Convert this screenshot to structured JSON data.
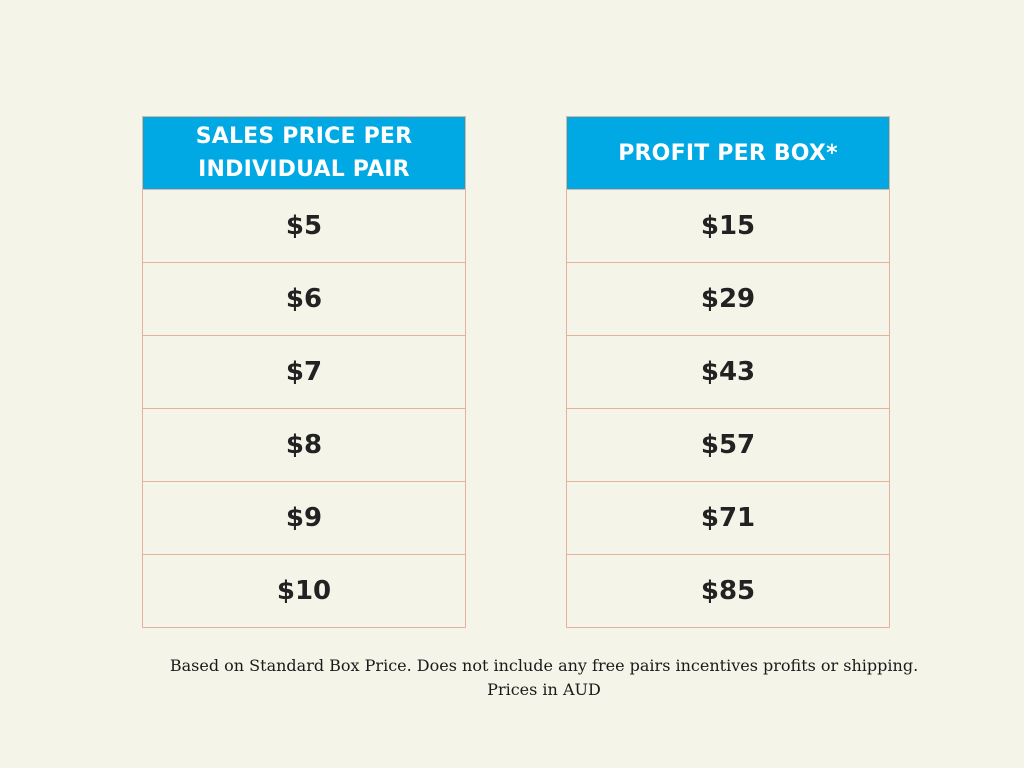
{
  "tables": [
    {
      "header": [
        "SALES PRICE PER",
        "INDIVIDUAL PAIR"
      ],
      "values": [
        "$5",
        "$6",
        "$7",
        "$8",
        "$9",
        "$10"
      ]
    },
    {
      "header": [
        "PROFIT PER BOX*"
      ],
      "values": [
        "$15",
        "$29",
        "$43",
        "$57",
        "$71",
        "$85"
      ]
    }
  ],
  "footnote": {
    "line1": "Based on Standard Box Price.  Does not include any free pairs incentives profits or shipping.",
    "line2": "Prices in AUD"
  },
  "colors": {
    "header_bg": "#00a8e4",
    "header_text": "#ffffff",
    "border": "#e2b39a",
    "background": "#f5f4e8"
  }
}
